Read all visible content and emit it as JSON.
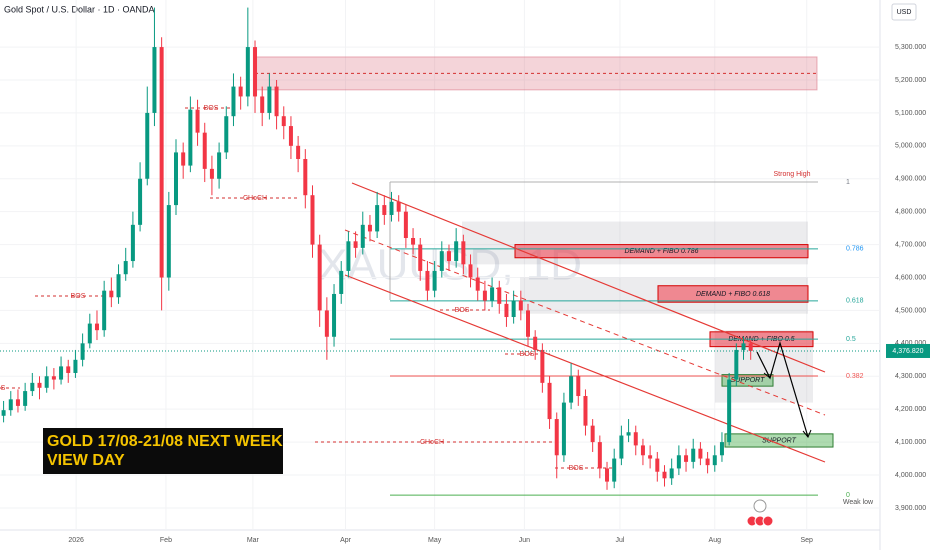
{
  "chart_data": {
    "type": "candlestick",
    "title": "Gold Spot / U.S. Dollar · 1D · OANDA",
    "currency": "USD",
    "watermark": "XAUUSD, 1D",
    "headline": [
      "GOLD 17/08-21/08 NEXT WEEK",
      "VIEW DAY"
    ],
    "up_color": "#089981",
    "down_color": "#f23645",
    "ylim": [
      3833,
      5443
    ],
    "yticks": [
      {
        "value": 3900,
        "label": "3,900.000"
      },
      {
        "value": 4000,
        "label": "4,000.000"
      },
      {
        "value": 4100,
        "label": "4,100.000"
      },
      {
        "value": 4200,
        "label": "4,200.000"
      },
      {
        "value": 4300,
        "label": "4,300.000"
      },
      {
        "value": 4400,
        "label": "4,400.000"
      },
      {
        "value": 4500,
        "label": "4,500.000"
      },
      {
        "value": 4600,
        "label": "4,600.000"
      },
      {
        "value": 4700,
        "label": "4,700.000"
      },
      {
        "value": 4800,
        "label": "4,800.000"
      },
      {
        "value": 4900,
        "label": "4,900.000"
      },
      {
        "value": 5000,
        "label": "5,000.000"
      },
      {
        "value": 5100,
        "label": "5,100.000"
      },
      {
        "value": 5200,
        "label": "5,200.000"
      },
      {
        "value": 5300,
        "label": "5,300.000"
      }
    ],
    "xlim": [
      -0.5,
      122
    ],
    "xticks": [
      {
        "value": 10.1,
        "label": "2026"
      },
      {
        "value": 22.6,
        "label": "Feb"
      },
      {
        "value": 34.7,
        "label": "Mar"
      },
      {
        "value": 47.6,
        "label": "Apr"
      },
      {
        "value": 60,
        "label": "May"
      },
      {
        "value": 72.5,
        "label": "Jun"
      },
      {
        "value": 85.8,
        "label": "Jul"
      },
      {
        "value": 99,
        "label": "Aug"
      },
      {
        "value": 111.8,
        "label": "Sep"
      }
    ],
    "last_price": {
      "value": 4376.82,
      "label": "4,376.820"
    },
    "open": [
      4180,
      4197,
      4230,
      4210,
      4255,
      4280,
      4265,
      4300,
      4290,
      4330,
      4310,
      4350,
      4400,
      4460,
      4440,
      4560,
      4540,
      4610,
      4650,
      4760,
      4900,
      5100,
      5300,
      4600,
      4820,
      4980,
      4940,
      5110,
      5040,
      4930,
      4900,
      4980,
      5090,
      5180,
      5150,
      5300,
      5150,
      5100,
      5180,
      5090,
      5060,
      5000,
      4960,
      4850,
      4700,
      4500,
      4420,
      4550,
      4620,
      4710,
      4690,
      4760,
      4740,
      4820,
      4790,
      4830,
      4800,
      4720,
      4700,
      4620,
      4560,
      4620,
      4680,
      4650,
      4710,
      4640,
      4600,
      4560,
      4530,
      4570,
      4520,
      4480,
      4530,
      4500,
      4420,
      4380,
      4280,
      4170,
      4060,
      4220,
      4300,
      4240,
      4150,
      4100,
      4020,
      3980,
      4050,
      4120,
      4130,
      4090,
      4060,
      4050,
      4010,
      3990,
      4020,
      4060,
      4040,
      4080,
      4050,
      4030,
      4060,
      4100,
      4290,
      4380,
      4400
    ],
    "high": [
      4225,
      4255,
      4260,
      4280,
      4310,
      4300,
      4330,
      4325,
      4360,
      4350,
      4380,
      4430,
      4490,
      4500,
      4590,
      4600,
      4640,
      4690,
      4800,
      4950,
      5180,
      5420,
      5330,
      4860,
      5020,
      5010,
      5150,
      5140,
      5070,
      4970,
      5010,
      5120,
      5220,
      5210,
      5420,
      5320,
      5180,
      5220,
      5200,
      5120,
      5090,
      5030,
      4990,
      4880,
      4730,
      4540,
      4580,
      4650,
      4740,
      4740,
      4800,
      4790,
      4860,
      4850,
      4860,
      4850,
      4820,
      4750,
      4720,
      4650,
      4650,
      4710,
      4700,
      4750,
      4730,
      4670,
      4630,
      4590,
      4600,
      4590,
      4550,
      4560,
      4560,
      4520,
      4440,
      4400,
      4300,
      4190,
      4250,
      4340,
      4320,
      4260,
      4170,
      4120,
      4040,
      4080,
      4150,
      4170,
      4150,
      4110,
      4090,
      4070,
      4030,
      4050,
      4090,
      4080,
      4110,
      4100,
      4070,
      4090,
      4130,
      4310,
      4400,
      4420,
      4410
    ],
    "low": [
      4160,
      4180,
      4190,
      4195,
      4240,
      4230,
      4250,
      4260,
      4275,
      4280,
      4295,
      4330,
      4385,
      4410,
      4420,
      4510,
      4520,
      4590,
      4630,
      4740,
      4880,
      5060,
      4500,
      4560,
      4790,
      4900,
      4920,
      5000,
      4890,
      4850,
      4870,
      4960,
      5060,
      5110,
      5120,
      5100,
      5060,
      5080,
      5050,
      5020,
      4960,
      4920,
      4810,
      4660,
      4450,
      4350,
      4390,
      4520,
      4600,
      4660,
      4670,
      4710,
      4720,
      4760,
      4770,
      4770,
      4690,
      4670,
      4590,
      4530,
      4540,
      4600,
      4620,
      4630,
      4610,
      4570,
      4530,
      4500,
      4510,
      4490,
      4450,
      4460,
      4470,
      4390,
      4350,
      4250,
      4140,
      3990,
      4040,
      4200,
      4210,
      4120,
      4070,
      3990,
      3955,
      3960,
      4030,
      4100,
      4060,
      4030,
      4020,
      3980,
      3965,
      3970,
      4000,
      4010,
      4020,
      4030,
      4005,
      4010,
      4040,
      4090,
      4270,
      4350,
      4350
    ],
    "close": [
      4197,
      4230,
      4210,
      4255,
      4280,
      4265,
      4300,
      4290,
      4330,
      4310,
      4350,
      4400,
      4460,
      4440,
      4560,
      4540,
      4610,
      4650,
      4760,
      4900,
      5100,
      5300,
      4600,
      4820,
      4980,
      4940,
      5110,
      5040,
      4930,
      4900,
      4980,
      5090,
      5180,
      5150,
      5300,
      5150,
      5100,
      5180,
      5090,
      5060,
      5000,
      4960,
      4850,
      4700,
      4500,
      4420,
      4550,
      4620,
      4710,
      4690,
      4760,
      4740,
      4820,
      4790,
      4830,
      4800,
      4720,
      4700,
      4620,
      4560,
      4620,
      4680,
      4650,
      4710,
      4640,
      4600,
      4560,
      4530,
      4570,
      4520,
      4480,
      4530,
      4500,
      4420,
      4380,
      4280,
      4170,
      4060,
      4220,
      4300,
      4240,
      4150,
      4100,
      4020,
      3980,
      4050,
      4120,
      4130,
      4090,
      4060,
      4050,
      4010,
      3990,
      4020,
      4060,
      4040,
      4080,
      4050,
      4030,
      4060,
      4100,
      4290,
      4380,
      4400,
      4377
    ],
    "fib_levels": [
      {
        "label": "1",
        "value": 4890
      },
      {
        "label": "0.786",
        "value": 4687
      },
      {
        "label": "0.618",
        "value": 4529
      },
      {
        "label": "0.5",
        "value": 4413
      },
      {
        "label": "0.382",
        "value": 4301
      },
      {
        "label": "0",
        "value": 3939
      }
    ],
    "zones": [
      {
        "range": [
          5170,
          5270
        ]
      },
      {
        "label": "DEMAND + FIBO 0.786",
        "range": [
          4660,
          4700
        ]
      },
      {
        "label": "DEMAND + FIBO 0.618",
        "range": [
          4525,
          4575
        ]
      },
      {
        "label": "DEMAND + FIBO 0.5",
        "range": [
          4390,
          4435
        ]
      },
      {
        "label": "SUPPORT",
        "range": [
          4270,
          4305
        ]
      },
      {
        "label": "SUPPORT",
        "range": [
          4085,
          4125
        ]
      }
    ],
    "annotations": [
      "Strong High",
      "Weak low",
      "BOS",
      "BOS",
      "BOS",
      "BOS",
      "BOS",
      "CHoCH",
      "CHoCH",
      "S"
    ]
  }
}
